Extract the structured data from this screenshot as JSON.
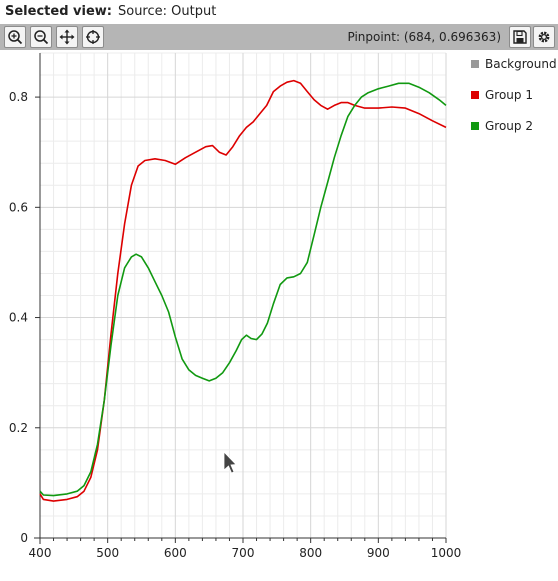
{
  "header": {
    "selected_view_label": "Selected view:",
    "source_label": "Source: Output"
  },
  "toolbar": {
    "tools": [
      {
        "name": "zoom-in-icon"
      },
      {
        "name": "zoom-out-icon"
      },
      {
        "name": "pan-icon"
      },
      {
        "name": "crosshair-icon"
      }
    ],
    "pinpoint_text": "Pinpoint: (684, 0.696363)",
    "save_icon": "save-icon",
    "settings_icon": "gear-icon"
  },
  "chart_data": {
    "type": "line",
    "title": "",
    "xlabel": "",
    "ylabel": "",
    "xlim": [
      400,
      1000
    ],
    "ylim": [
      0,
      0.88
    ],
    "x_ticks": [
      400,
      500,
      600,
      700,
      800,
      900,
      1000
    ],
    "y_ticks": [
      0,
      0.2,
      0.4,
      0.6,
      0.8
    ],
    "grid": true,
    "legend_position": "right",
    "series": [
      {
        "name": "Background",
        "color": "#999999",
        "points": []
      },
      {
        "name": "Group 1",
        "color": "#dd0000",
        "points": [
          [
            400,
            0.08
          ],
          [
            405,
            0.07
          ],
          [
            420,
            0.067
          ],
          [
            440,
            0.07
          ],
          [
            455,
            0.075
          ],
          [
            465,
            0.085
          ],
          [
            475,
            0.11
          ],
          [
            485,
            0.16
          ],
          [
            495,
            0.25
          ],
          [
            505,
            0.37
          ],
          [
            515,
            0.48
          ],
          [
            525,
            0.57
          ],
          [
            535,
            0.64
          ],
          [
            545,
            0.675
          ],
          [
            555,
            0.685
          ],
          [
            570,
            0.688
          ],
          [
            585,
            0.685
          ],
          [
            600,
            0.678
          ],
          [
            615,
            0.69
          ],
          [
            630,
            0.7
          ],
          [
            645,
            0.71
          ],
          [
            655,
            0.712
          ],
          [
            665,
            0.7
          ],
          [
            675,
            0.695
          ],
          [
            685,
            0.71
          ],
          [
            695,
            0.73
          ],
          [
            705,
            0.745
          ],
          [
            715,
            0.755
          ],
          [
            725,
            0.77
          ],
          [
            735,
            0.785
          ],
          [
            745,
            0.81
          ],
          [
            755,
            0.82
          ],
          [
            765,
            0.827
          ],
          [
            775,
            0.83
          ],
          [
            785,
            0.825
          ],
          [
            795,
            0.81
          ],
          [
            805,
            0.795
          ],
          [
            815,
            0.785
          ],
          [
            825,
            0.778
          ],
          [
            835,
            0.785
          ],
          [
            845,
            0.79
          ],
          [
            855,
            0.79
          ],
          [
            865,
            0.785
          ],
          [
            880,
            0.78
          ],
          [
            900,
            0.78
          ],
          [
            920,
            0.782
          ],
          [
            940,
            0.78
          ],
          [
            960,
            0.77
          ],
          [
            980,
            0.757
          ],
          [
            1000,
            0.745
          ]
        ]
      },
      {
        "name": "Group 2",
        "color": "#119911",
        "points": [
          [
            400,
            0.085
          ],
          [
            405,
            0.078
          ],
          [
            420,
            0.077
          ],
          [
            440,
            0.08
          ],
          [
            455,
            0.085
          ],
          [
            465,
            0.095
          ],
          [
            475,
            0.12
          ],
          [
            485,
            0.17
          ],
          [
            495,
            0.25
          ],
          [
            505,
            0.35
          ],
          [
            515,
            0.44
          ],
          [
            525,
            0.49
          ],
          [
            535,
            0.51
          ],
          [
            542,
            0.515
          ],
          [
            550,
            0.51
          ],
          [
            560,
            0.49
          ],
          [
            570,
            0.465
          ],
          [
            580,
            0.44
          ],
          [
            590,
            0.41
          ],
          [
            600,
            0.365
          ],
          [
            610,
            0.325
          ],
          [
            620,
            0.305
          ],
          [
            630,
            0.295
          ],
          [
            640,
            0.29
          ],
          [
            650,
            0.285
          ],
          [
            660,
            0.29
          ],
          [
            670,
            0.3
          ],
          [
            680,
            0.318
          ],
          [
            690,
            0.34
          ],
          [
            698,
            0.36
          ],
          [
            705,
            0.368
          ],
          [
            712,
            0.362
          ],
          [
            720,
            0.36
          ],
          [
            728,
            0.37
          ],
          [
            736,
            0.39
          ],
          [
            745,
            0.425
          ],
          [
            755,
            0.46
          ],
          [
            765,
            0.472
          ],
          [
            775,
            0.474
          ],
          [
            785,
            0.48
          ],
          [
            795,
            0.5
          ],
          [
            805,
            0.55
          ],
          [
            815,
            0.6
          ],
          [
            825,
            0.645
          ],
          [
            835,
            0.69
          ],
          [
            845,
            0.73
          ],
          [
            855,
            0.765
          ],
          [
            865,
            0.785
          ],
          [
            875,
            0.8
          ],
          [
            885,
            0.808
          ],
          [
            900,
            0.815
          ],
          [
            915,
            0.82
          ],
          [
            930,
            0.825
          ],
          [
            945,
            0.825
          ],
          [
            960,
            0.818
          ],
          [
            975,
            0.808
          ],
          [
            990,
            0.795
          ],
          [
            1000,
            0.785
          ]
        ]
      }
    ]
  }
}
